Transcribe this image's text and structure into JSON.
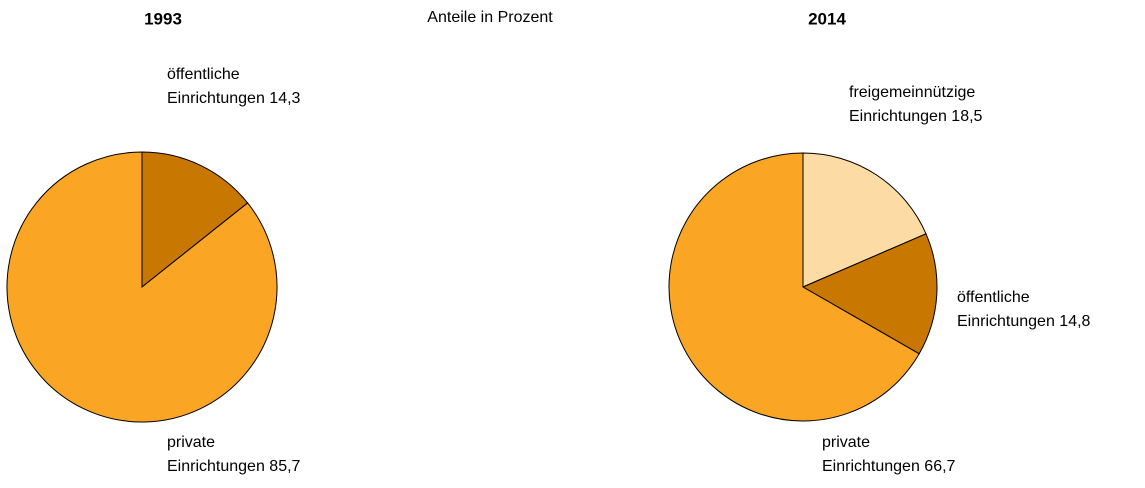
{
  "chart_data": [
    {
      "type": "pie",
      "title": "1993",
      "subtitle": "Anteile in Prozent",
      "categories": [
        "öffentliche Einrichtungen",
        "private Einrichtungen"
      ],
      "values": [
        14.3,
        85.7
      ],
      "value_labels": [
        "14,3",
        "85,7"
      ],
      "colors": [
        "#c87700",
        "#fba524"
      ]
    },
    {
      "type": "pie",
      "title": "2014",
      "categories": [
        "freigemeinnützige Einrichtungen",
        "öffentliche Einrichtungen",
        "private Einrichtungen"
      ],
      "values": [
        18.5,
        14.8,
        66.7
      ],
      "value_labels": [
        "18,5",
        "14,8",
        "66,7"
      ],
      "colors": [
        "#fddba5",
        "#c87700",
        "#fba524"
      ]
    }
  ]
}
